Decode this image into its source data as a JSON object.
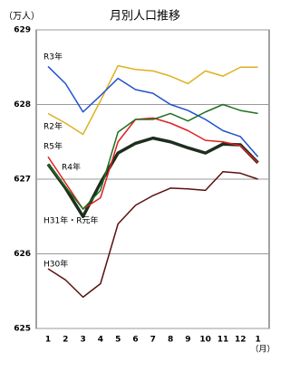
{
  "chart_data": {
    "type": "line",
    "title": "月別人口推移",
    "y_label": "（万人）",
    "x_label": "（月）",
    "categories": [
      "1",
      "2",
      "3",
      "4",
      "5",
      "6",
      "7",
      "8",
      "9",
      "10",
      "11",
      "12",
      "1"
    ],
    "series": [
      {
        "name": "H30年",
        "color": "#5a1010",
        "values": [
          625.8,
          625.65,
          625.42,
          625.6,
          626.4,
          626.65,
          626.78,
          626.88,
          626.87,
          626.85,
          627.1,
          627.08,
          627.0
        ]
      },
      {
        "name": "H31年・R元年",
        "color": "#1e2e1e",
        "width": 3.5,
        "values": [
          627.2,
          626.88,
          626.5,
          626.95,
          627.35,
          627.48,
          627.55,
          627.5,
          627.42,
          627.35,
          627.47,
          627.46,
          627.22
        ]
      },
      {
        "name": "R2年",
        "color": "#e0b020",
        "values": [
          627.88,
          627.75,
          627.6,
          628.05,
          628.52,
          628.47,
          628.45,
          628.38,
          628.28,
          628.45,
          628.38,
          628.5,
          628.5
        ]
      },
      {
        "name": "R3年",
        "color": "#2050d0",
        "values": [
          628.51,
          628.28,
          627.9,
          628.12,
          628.35,
          628.2,
          628.15,
          628.0,
          627.92,
          627.8,
          627.65,
          627.57,
          627.3
        ]
      },
      {
        "name": "R4年",
        "color": "#e02020",
        "values": [
          627.3,
          626.95,
          626.6,
          626.75,
          627.5,
          627.8,
          627.82,
          627.75,
          627.65,
          627.52,
          627.5,
          627.45,
          627.22
        ]
      },
      {
        "name": "R5年",
        "color": "#207020",
        "values": [
          627.2,
          626.9,
          626.6,
          626.85,
          627.63,
          627.8,
          627.8,
          627.88,
          627.78,
          627.9,
          628.0,
          627.92,
          627.88
        ]
      }
    ],
    "ylim": [
      625,
      629
    ],
    "yticks": [
      625,
      626,
      627,
      628,
      629
    ],
    "grid": true
  }
}
